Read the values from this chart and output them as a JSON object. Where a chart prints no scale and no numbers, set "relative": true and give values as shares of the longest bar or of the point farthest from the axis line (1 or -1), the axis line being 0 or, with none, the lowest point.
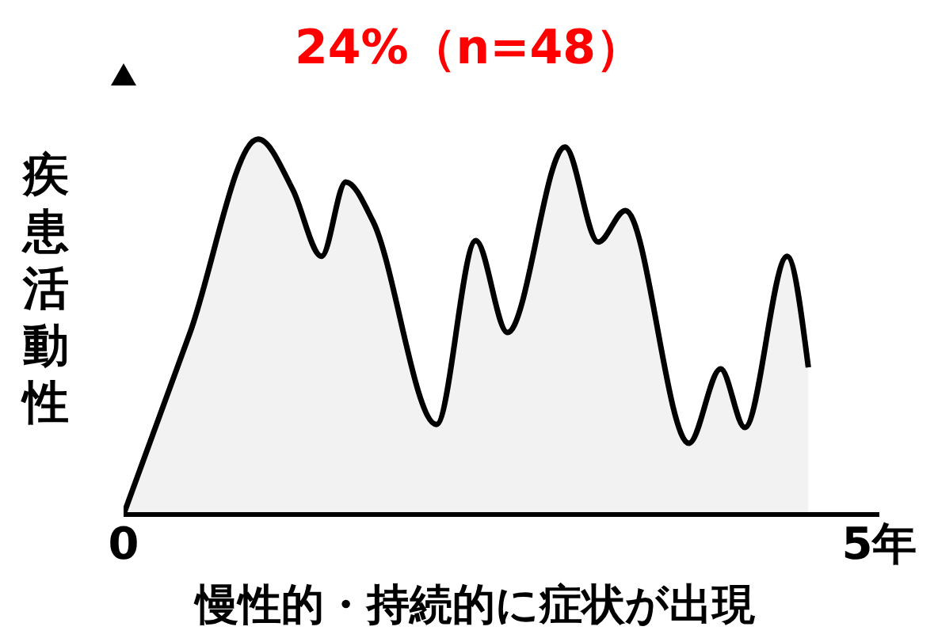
{
  "chart_data": {
    "type": "area",
    "title": "24%（n=48）",
    "xlabel": "慢性的・持続的に症状が出現",
    "ylabel": "疾患活動性",
    "relative": true,
    "x": [
      0,
      0.44,
      0.89,
      1.12,
      1.31,
      1.47,
      1.65,
      2.07,
      2.33,
      2.54,
      2.92,
      3.14,
      3.32,
      3.74,
      3.95,
      4.11,
      4.39,
      4.53
    ],
    "series": [
      {
        "color": "#000000",
        "values": [
          0,
          0.485,
          1,
          0.865,
          0.688,
          0.886,
          0.781,
          0.24,
          0.73,
          0.485,
          0.979,
          0.726,
          0.81,
          0.19,
          0.388,
          0.232,
          0.688,
          0.392
        ]
      }
    ],
    "xlim": [
      0,
      5
    ],
    "xticks": [
      {
        "value": 0,
        "label": "0"
      },
      {
        "value": 5,
        "label": "5年"
      }
    ],
    "grid": false,
    "legend": false,
    "marker": "none"
  }
}
